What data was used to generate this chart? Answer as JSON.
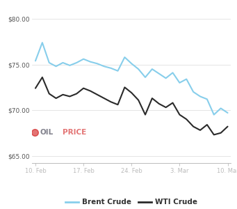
{
  "brent_x": [
    0,
    1,
    2,
    3,
    4,
    5,
    6,
    7,
    8,
    9,
    10,
    11,
    12,
    13,
    14,
    15,
    16,
    17,
    18,
    19,
    20,
    21,
    22,
    23,
    24,
    25,
    26,
    27,
    28
  ],
  "brent_y": [
    75.4,
    77.4,
    75.2,
    74.8,
    75.2,
    74.9,
    75.2,
    75.6,
    75.3,
    75.1,
    74.8,
    74.6,
    74.3,
    75.8,
    75.1,
    74.5,
    73.6,
    74.5,
    74.0,
    73.5,
    74.1,
    73.0,
    73.4,
    72.0,
    71.5,
    71.2,
    69.5,
    70.2,
    69.7
  ],
  "wti_x": [
    0,
    1,
    2,
    3,
    4,
    5,
    6,
    7,
    8,
    9,
    10,
    11,
    12,
    13,
    14,
    15,
    16,
    17,
    18,
    19,
    20,
    21,
    22,
    23,
    24,
    25,
    26,
    27,
    28
  ],
  "wti_y": [
    72.4,
    73.6,
    71.8,
    71.3,
    71.7,
    71.5,
    71.8,
    72.4,
    72.1,
    71.7,
    71.3,
    70.9,
    70.6,
    72.5,
    71.9,
    71.1,
    69.5,
    71.3,
    70.7,
    70.3,
    70.8,
    69.5,
    69.0,
    68.2,
    67.8,
    68.4,
    67.3,
    67.5,
    68.2
  ],
  "xtick_positions": [
    0,
    7,
    14,
    21,
    28
  ],
  "xtick_labels": [
    "10. Feb",
    "17. Feb",
    "24. Feb",
    "3. Mar",
    "10. Mar"
  ],
  "ytick_values": [
    65.0,
    70.0,
    75.0,
    80.0
  ],
  "ylim": [
    64.2,
    81.5
  ],
  "xlim": [
    -0.5,
    28.5
  ],
  "brent_color": "#87CEEB",
  "wti_color": "#2a2a2a",
  "bg_color": "#ffffff",
  "grid_color": "#e0e0e0",
  "legend_brent": "Brent Crude",
  "legend_wti": "WTI Crude",
  "line_width": 1.5,
  "logo_text": "OILPRICE",
  "logo_dot_color": "#cc0000",
  "logo_oil_color": "#1a1a2e",
  "logo_price_color": "#cc0000",
  "logo_com_color": "#444444"
}
